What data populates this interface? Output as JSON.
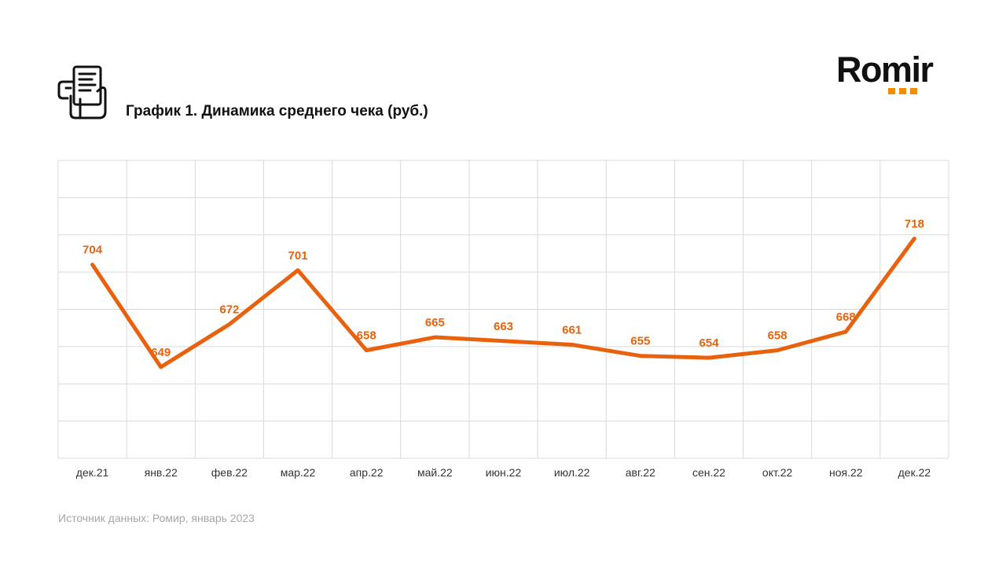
{
  "header": {
    "title": "График 1. Динамика среднего чека (руб.)",
    "icon": "receipt-hand-icon"
  },
  "logo": {
    "text": "Romir",
    "accent_color": "#f28c00",
    "dots": 3
  },
  "chart_data": {
    "type": "line",
    "categories": [
      "дек.21",
      "янв.22",
      "фев.22",
      "мар.22",
      "апр.22",
      "май.22",
      "июн.22",
      "июл.22",
      "авг.22",
      "сен.22",
      "окт.22",
      "ноя.22",
      "дек.22"
    ],
    "series": [
      {
        "values": [
          704,
          649,
          672,
          701,
          658,
          665,
          663,
          661,
          655,
          654,
          658,
          668,
          718
        ],
        "color": "#e8620e"
      }
    ],
    "data_labels": true,
    "ylim": [
      600,
      760
    ],
    "y_gridlines": [
      620,
      640,
      660,
      680,
      700,
      720,
      740,
      760
    ],
    "y_tick_labels": false,
    "grid": true,
    "legend": "none",
    "gridline_color": "#d9d9d9"
  },
  "footer": {
    "source": "Источник данных:  Ромир, январь 2023"
  }
}
